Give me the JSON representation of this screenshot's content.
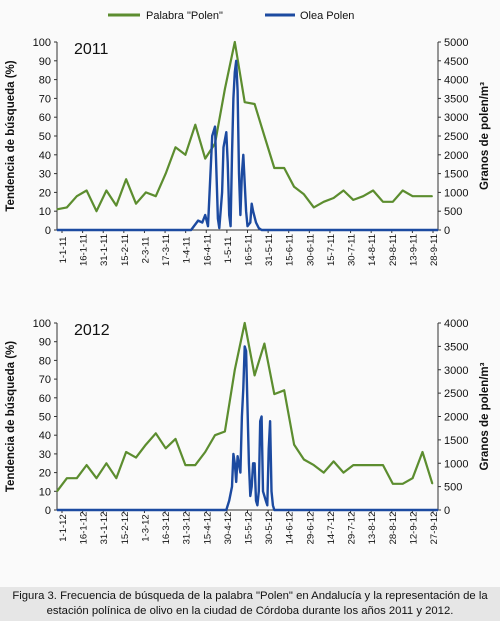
{
  "chart_data": [
    {
      "type": "line",
      "title": "2011",
      "ylabel": "Tendencia de búsqueda (%)",
      "y2label": "Granos de polen/m³",
      "ylim": [
        0,
        100
      ],
      "y2lim": [
        0,
        5000
      ],
      "yticks": [
        "0",
        "10",
        "20",
        "30",
        "40",
        "50",
        "60",
        "70",
        "80",
        "90",
        "100"
      ],
      "y2ticks": [
        "0",
        "500",
        "1000",
        "1500",
        "2000",
        "2500",
        "3000",
        "3500",
        "4000",
        "4500",
        "5000"
      ],
      "xticks": [
        "1-1-11",
        "16-1-11",
        "31-1-11",
        "15-2-11",
        "2-3-11",
        "17-3-11",
        "1-4-11",
        "16-4-11",
        "1-5-11",
        "16-5-11",
        "31-5-11",
        "15-6-11",
        "30-6-11",
        "15-7-11",
        "30-7-11",
        "14-8-11",
        "29-8-11",
        "13-9-11",
        "28-9-11"
      ],
      "xdomain": [
        0,
        270
      ],
      "legend_position": "top",
      "series": [
        {
          "name": "Palabra \"Polen\"",
          "axis": "left",
          "color": "#5c8d2f",
          "x": [
            0,
            7,
            14,
            21,
            28,
            35,
            42,
            49,
            56,
            63,
            70,
            77,
            84,
            91,
            98,
            105,
            112,
            119,
            126,
            133,
            140,
            147,
            154,
            161,
            168,
            175,
            182,
            189,
            196,
            203,
            210,
            217,
            224,
            231,
            238,
            245,
            252,
            259,
            266
          ],
          "y": [
            11,
            12,
            18,
            21,
            10,
            21,
            13,
            27,
            14,
            20,
            18,
            30,
            44,
            40,
            56,
            38,
            46,
            75,
            100,
            68,
            67,
            50,
            33,
            33,
            23,
            19,
            12,
            15,
            17,
            21,
            16,
            18,
            21,
            15,
            15,
            21,
            18,
            18,
            18
          ]
        },
        {
          "name": "Olea Polen",
          "axis": "right",
          "color": "#1c4aa0",
          "x": [
            0,
            95,
            100,
            103,
            105,
            107,
            110,
            112,
            114,
            115,
            117,
            118,
            120,
            121,
            122,
            123,
            124,
            125,
            126,
            127,
            128,
            129,
            130,
            131,
            132,
            134,
            135,
            137,
            138,
            139,
            141,
            143,
            145,
            270
          ],
          "y": [
            0,
            0,
            250,
            200,
            400,
            100,
            2500,
            2750,
            300,
            50,
            1000,
            2200,
            2600,
            1800,
            400,
            100,
            2000,
            3500,
            4200,
            4500,
            3700,
            1500,
            400,
            1500,
            2000,
            500,
            100,
            200,
            700,
            500,
            200,
            50,
            0,
            0
          ]
        }
      ]
    },
    {
      "type": "line",
      "title": "2012",
      "ylabel": "Tendencia de búsqueda (%)",
      "y2label": "Granos de polen/m³",
      "ylim": [
        0,
        100
      ],
      "y2lim": [
        0,
        4000
      ],
      "yticks": [
        "0",
        "10",
        "20",
        "30",
        "40",
        "50",
        "60",
        "70",
        "80",
        "90",
        "100"
      ],
      "y2ticks": [
        "0",
        "500",
        "1000",
        "1500",
        "2000",
        "2500",
        "3000",
        "3500",
        "4000"
      ],
      "xticks": [
        "1-1-12",
        "16-1-12",
        "31-1-12",
        "15-2-12",
        "1-3-12",
        "16-3-12",
        "31-3-12",
        "15-4-12",
        "30-4-12",
        "15-5-12",
        "30-5-12",
        "14-6-12",
        "29-6-12",
        "14-7-12",
        "29-7-12",
        "13-8-12",
        "28-8-12",
        "12-9-12",
        "27-9-12"
      ],
      "xdomain": [
        0,
        270
      ],
      "series": [
        {
          "name": "Palabra \"Polen\"",
          "axis": "left",
          "color": "#5c8d2f",
          "x": [
            0,
            7,
            14,
            21,
            28,
            35,
            42,
            49,
            56,
            63,
            70,
            77,
            84,
            91,
            98,
            105,
            112,
            119,
            126,
            133,
            140,
            147,
            154,
            161,
            168,
            175,
            182,
            189,
            196,
            203,
            210,
            217,
            224,
            231,
            238,
            245,
            252,
            259,
            266
          ],
          "y": [
            10,
            17,
            17,
            24,
            17,
            25,
            17,
            31,
            28,
            35,
            41,
            33,
            38,
            24,
            24,
            31,
            40,
            42,
            75,
            100,
            72,
            89,
            62,
            64,
            35,
            27,
            24,
            20,
            26,
            20,
            24,
            24,
            24,
            24,
            14,
            14,
            17,
            31,
            14
          ]
        },
        {
          "name": "Olea Polen",
          "axis": "right",
          "color": "#1c4aa0",
          "x": [
            0,
            120,
            122,
            124,
            125,
            126,
            127,
            128,
            130,
            131,
            132,
            133,
            134,
            136,
            137,
            138,
            139,
            140,
            141,
            142,
            143,
            144,
            145,
            146,
            148,
            149,
            150,
            151,
            152,
            153,
            154,
            270
          ],
          "y": [
            0,
            0,
            200,
            500,
            1200,
            1000,
            600,
            1150,
            800,
            2000,
            2600,
            3500,
            3400,
            1000,
            300,
            500,
            1000,
            1000,
            200,
            100,
            400,
            1900,
            2000,
            400,
            200,
            100,
            1300,
            1900,
            400,
            100,
            0,
            0
          ]
        }
      ]
    }
  ],
  "caption": {
    "line1": "Figura 3. Frecuencia de búsqueda de la palabra \"Polen\" en Andalucía y la representación de la",
    "line2": "estación polínica de olivo en la ciudad de Córdoba durante los años 2011 y 2012."
  }
}
